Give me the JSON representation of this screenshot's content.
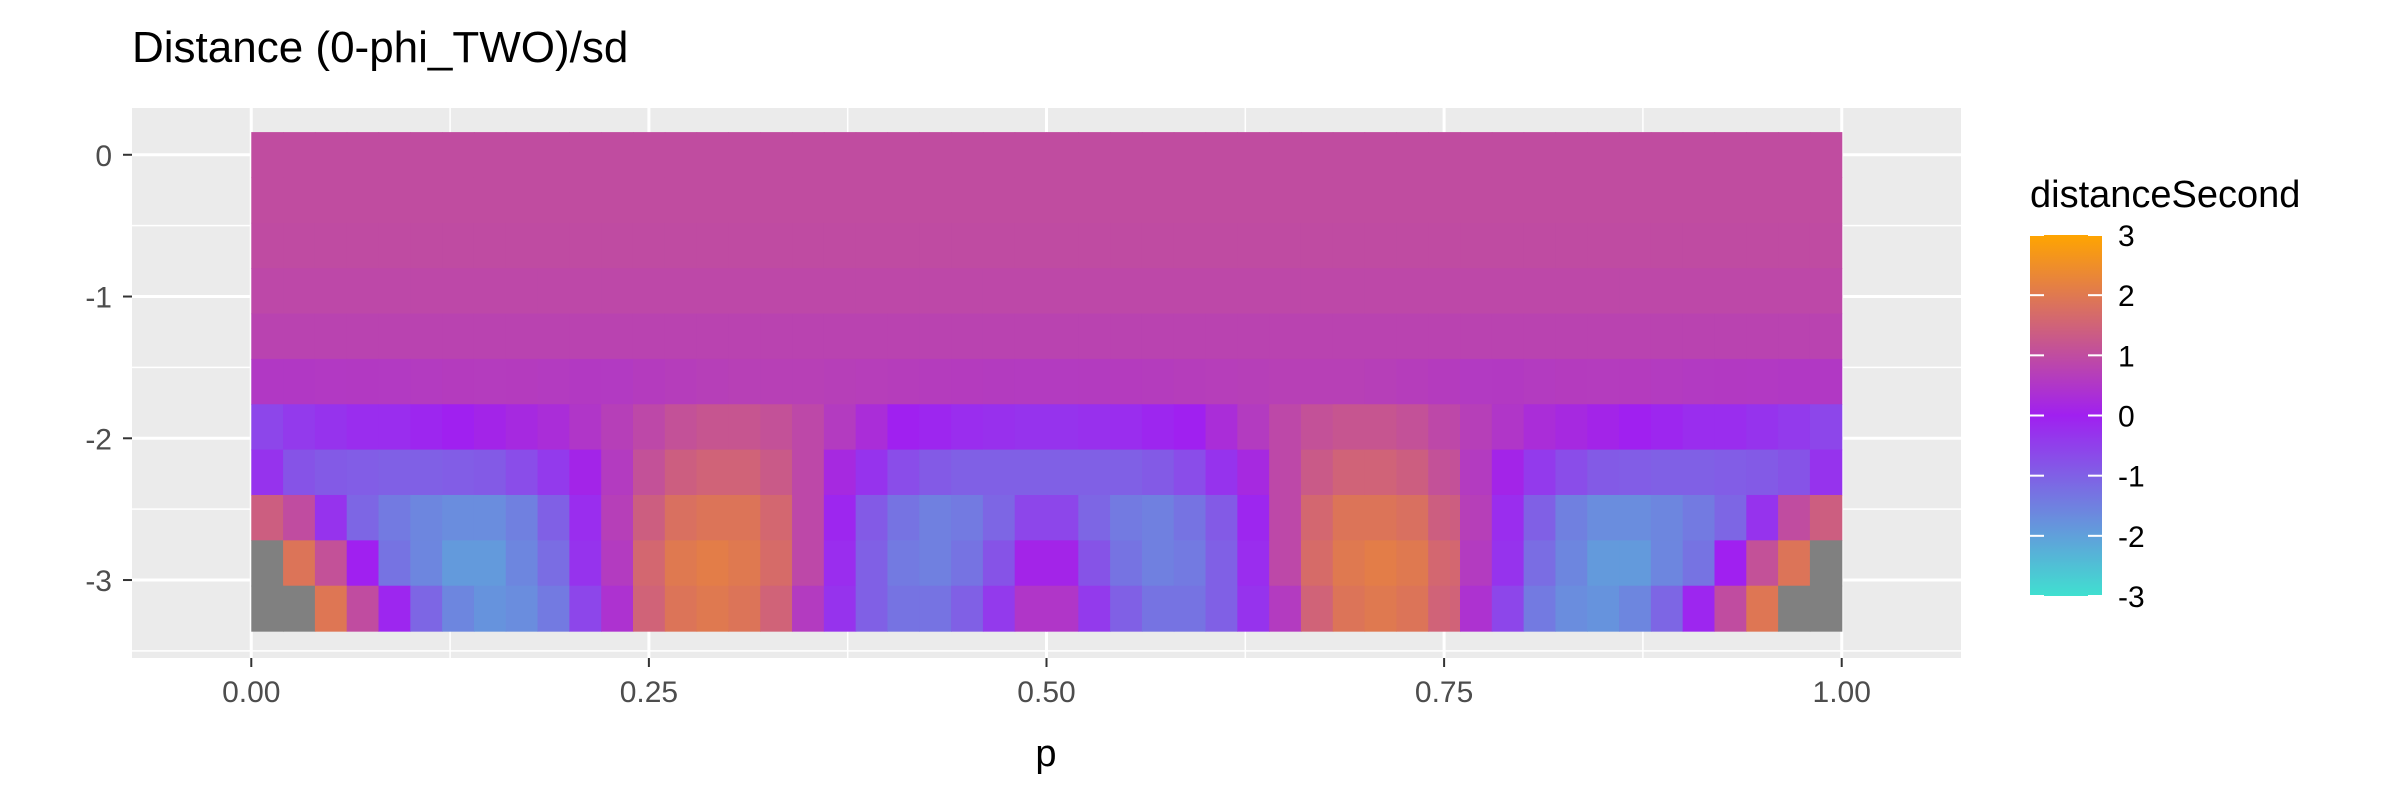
{
  "chart_data": {
    "type": "heatmap",
    "title": "Distance (0-phi_TWO)/sd",
    "xlabel": "p",
    "ylabel": "",
    "xlim": [
      -0.075,
      1.075
    ],
    "ylim": [
      -3.55,
      0.33
    ],
    "x_ticks": [
      {
        "value": 0.0,
        "label": "0.00"
      },
      {
        "value": 0.25,
        "label": "0.25"
      },
      {
        "value": 0.5,
        "label": "0.50"
      },
      {
        "value": 0.75,
        "label": "0.75"
      },
      {
        "value": 1.0,
        "label": "1.00"
      }
    ],
    "y_ticks": [
      {
        "value": 0,
        "label": "0"
      },
      {
        "value": -1,
        "label": "-1"
      },
      {
        "value": -2,
        "label": "-2"
      },
      {
        "value": -3,
        "label": "-3"
      }
    ],
    "grid": true,
    "legend": {
      "title": "distanceSecond",
      "placement": "right",
      "min": -3,
      "max": 3,
      "breaks": [
        3,
        2,
        1,
        0,
        -1,
        -2,
        -3
      ],
      "colors": [
        "#40E0D0",
        "#A020F0",
        "#FFA500"
      ],
      "na_color": "#808080"
    },
    "p_values": [
      0.01,
      0.03,
      0.05,
      0.07,
      0.09,
      0.11,
      0.13,
      0.15,
      0.17,
      0.19,
      0.21,
      0.23,
      0.25,
      0.27,
      0.29,
      0.31,
      0.33,
      0.35,
      0.37,
      0.39,
      0.41,
      0.43,
      0.45,
      0.47,
      0.49,
      0.51,
      0.53,
      0.55,
      0.57,
      0.59,
      0.61,
      0.63,
      0.65,
      0.67,
      0.69,
      0.71,
      0.73,
      0.75,
      0.77,
      0.79,
      0.81,
      0.83,
      0.85,
      0.87,
      0.89,
      0.91,
      0.93,
      0.95,
      0.97,
      0.99
    ],
    "rows": [
      {
        "y": 0.0,
        "values": [
          1,
          1,
          1,
          1,
          1,
          1,
          1,
          1,
          1,
          1,
          1,
          1,
          1,
          1,
          1,
          1,
          1,
          1,
          1,
          1,
          1,
          1,
          1,
          1,
          1,
          1,
          1,
          1,
          1,
          1,
          1,
          1,
          1,
          1,
          1,
          1,
          1,
          1,
          1,
          1,
          1,
          1,
          1,
          1,
          1,
          1,
          1,
          1,
          1,
          1
        ]
      },
      {
        "y": -0.32,
        "values": [
          1,
          1,
          1,
          1,
          1,
          1,
          1,
          1,
          1,
          1,
          1,
          1,
          1,
          1,
          1,
          1,
          1,
          1,
          1,
          1,
          1,
          1,
          1,
          1,
          1,
          1,
          1,
          1,
          1,
          1,
          1,
          1,
          1,
          1,
          1,
          1,
          1,
          1,
          1,
          1,
          1,
          1,
          1,
          1,
          1,
          1,
          1,
          1,
          1,
          1
        ]
      },
      {
        "y": -0.64,
        "values": [
          0.97,
          0.97,
          0.97,
          0.97,
          0.97,
          0.97,
          0.97,
          0.97,
          0.97,
          0.97,
          0.97,
          0.97,
          0.97,
          0.97,
          0.97,
          0.97,
          0.97,
          0.97,
          0.97,
          0.97,
          0.97,
          0.97,
          0.97,
          0.97,
          0.97,
          0.97,
          0.97,
          0.97,
          0.97,
          0.97,
          0.97,
          0.97,
          0.97,
          0.97,
          0.97,
          0.97,
          0.97,
          0.97,
          0.97,
          0.97,
          0.97,
          0.97,
          0.97,
          0.97,
          0.97,
          0.97,
          0.97,
          0.97,
          0.97,
          0.97
        ]
      },
      {
        "y": -0.96,
        "values": [
          0.9,
          0.9,
          0.9,
          0.9,
          0.9,
          0.9,
          0.9,
          0.9,
          0.9,
          0.9,
          0.9,
          0.9,
          0.9,
          0.9,
          0.9,
          0.9,
          0.9,
          0.9,
          0.9,
          0.9,
          0.9,
          0.9,
          0.9,
          0.9,
          0.9,
          0.9,
          0.9,
          0.9,
          0.9,
          0.9,
          0.9,
          0.9,
          0.9,
          0.9,
          0.9,
          0.9,
          0.9,
          0.9,
          0.9,
          0.9,
          0.9,
          0.9,
          0.9,
          0.9,
          0.9,
          0.9,
          0.9,
          0.9,
          0.9,
          0.9
        ]
      },
      {
        "y": -1.28,
        "values": [
          0.8,
          0.8,
          0.8,
          0.8,
          0.8,
          0.8,
          0.8,
          0.8,
          0.8,
          0.8,
          0.8,
          0.8,
          0.8,
          0.8,
          0.8,
          0.8,
          0.8,
          0.8,
          0.8,
          0.8,
          0.8,
          0.8,
          0.8,
          0.8,
          0.8,
          0.8,
          0.8,
          0.8,
          0.8,
          0.8,
          0.8,
          0.8,
          0.8,
          0.8,
          0.8,
          0.8,
          0.8,
          0.8,
          0.8,
          0.8,
          0.8,
          0.8,
          0.8,
          0.8,
          0.8,
          0.8,
          0.8,
          0.8,
          0.8,
          0.8
        ]
      },
      {
        "y": -1.6,
        "values": [
          0.55,
          0.55,
          0.56,
          0.57,
          0.58,
          0.6,
          0.62,
          0.63,
          0.62,
          0.6,
          0.57,
          0.58,
          0.62,
          0.66,
          0.7,
          0.72,
          0.72,
          0.72,
          0.7,
          0.68,
          0.66,
          0.64,
          0.62,
          0.61,
          0.6,
          0.6,
          0.61,
          0.62,
          0.64,
          0.66,
          0.68,
          0.7,
          0.72,
          0.72,
          0.72,
          0.7,
          0.66,
          0.62,
          0.58,
          0.57,
          0.6,
          0.62,
          0.63,
          0.62,
          0.6,
          0.58,
          0.57,
          0.56,
          0.55,
          0.55
        ]
      },
      {
        "y": -1.92,
        "values": [
          -0.6,
          -0.4,
          -0.3,
          -0.2,
          -0.2,
          -0.1,
          0,
          0.1,
          0.2,
          0.3,
          0.5,
          0.7,
          0.9,
          1.1,
          1.2,
          1.2,
          1.1,
          0.9,
          0.6,
          0.3,
          0,
          -0.1,
          -0.2,
          -0.25,
          -0.3,
          -0.3,
          -0.25,
          -0.2,
          -0.1,
          0,
          0.3,
          0.6,
          0.9,
          1.1,
          1.2,
          1.2,
          1.1,
          0.9,
          0.7,
          0.5,
          0.3,
          0.2,
          0.1,
          0,
          -0.1,
          -0.2,
          -0.2,
          -0.3,
          -0.4,
          -0.6
        ]
      },
      {
        "y": -2.24,
        "values": [
          -0.3,
          -0.8,
          -0.9,
          -0.95,
          -1.0,
          -1.0,
          -0.95,
          -0.9,
          -0.7,
          -0.4,
          0.1,
          0.6,
          1.1,
          1.4,
          1.5,
          1.5,
          1.3,
          0.9,
          0.2,
          -0.3,
          -0.7,
          -0.9,
          -1.0,
          -1.0,
          -1.0,
          -1.0,
          -1.0,
          -1.0,
          -0.9,
          -0.7,
          -0.3,
          0.2,
          0.9,
          1.3,
          1.5,
          1.5,
          1.4,
          1.1,
          0.6,
          0.1,
          -0.4,
          -0.7,
          -0.9,
          -0.95,
          -1.0,
          -1.0,
          -0.95,
          -0.9,
          -0.8,
          -0.3
        ]
      },
      {
        "y": -2.56,
        "values": [
          1.4,
          1.0,
          -0.3,
          -1.1,
          -1.4,
          -1.6,
          -1.7,
          -1.7,
          -1.5,
          -1.0,
          -0.2,
          0.7,
          1.4,
          1.8,
          1.9,
          1.9,
          1.6,
          0.9,
          -0.1,
          -0.9,
          -1.3,
          -1.5,
          -1.4,
          -1.1,
          -0.6,
          -0.6,
          -1.1,
          -1.4,
          -1.5,
          -1.3,
          -0.9,
          -0.1,
          0.9,
          1.6,
          1.9,
          1.9,
          1.8,
          1.4,
          0.7,
          -0.2,
          -1.0,
          -1.5,
          -1.7,
          -1.7,
          -1.6,
          -1.4,
          -1.1,
          -0.3,
          1.0,
          1.4
        ]
      },
      {
        "y": -2.88,
        "values": [
          null,
          1.9,
          1.1,
          0.0,
          -1.3,
          -1.6,
          -1.9,
          -1.9,
          -1.6,
          -1.2,
          -0.3,
          0.6,
          1.6,
          2.0,
          2.1,
          2.0,
          1.7,
          0.9,
          -0.2,
          -1.0,
          -1.4,
          -1.5,
          -1.3,
          -0.8,
          0.1,
          0.1,
          -0.8,
          -1.3,
          -1.5,
          -1.4,
          -1.0,
          -0.2,
          0.9,
          1.7,
          2.0,
          2.1,
          2.0,
          1.6,
          0.6,
          -0.3,
          -1.2,
          -1.6,
          -1.9,
          -1.9,
          -1.6,
          -1.3,
          0.0,
          1.1,
          1.9,
          null
        ]
      },
      {
        "y": -3.2,
        "values": [
          null,
          null,
          1.95,
          1.0,
          -0.1,
          -1.1,
          -1.6,
          -1.8,
          -1.7,
          -1.4,
          -0.6,
          0.4,
          1.5,
          1.9,
          2.0,
          1.9,
          1.5,
          0.6,
          -0.3,
          -1.0,
          -1.3,
          -1.3,
          -1.0,
          -0.4,
          0.5,
          0.5,
          -0.4,
          -1.0,
          -1.3,
          -1.3,
          -1.0,
          -0.3,
          0.6,
          1.5,
          1.9,
          2.0,
          1.9,
          1.5,
          0.4,
          -0.6,
          -1.4,
          -1.7,
          -1.8,
          -1.6,
          -1.1,
          -0.1,
          1.0,
          1.95,
          null,
          null
        ]
      }
    ]
  }
}
